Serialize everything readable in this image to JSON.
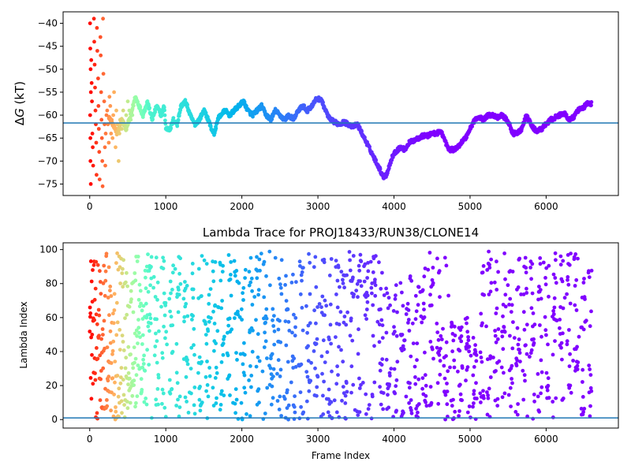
{
  "chart_data": [
    {
      "type": "scatter",
      "title": "",
      "xlabel": "",
      "ylabel": "ΔG (kT)",
      "ylabel_symbol": "Δ",
      "ylabel_var": "G",
      "ylabel_unit": " (kT)",
      "xlim": [
        -350,
        6950
      ],
      "ylim": [
        -77.5,
        -37.5
      ],
      "xticks": [
        0,
        1000,
        2000,
        3000,
        4000,
        5000,
        6000
      ],
      "yticks": [
        -40,
        -45,
        -50,
        -55,
        -60,
        -65,
        -70,
        -75
      ],
      "hline": -61.7,
      "hline_color": "#1f77b4",
      "colormap": "rainbow (frame index; early frames red, late frames violet)",
      "series_trace": [
        [
          0,
          -50
        ],
        [
          60,
          -60
        ],
        [
          120,
          -57
        ],
        [
          180,
          -63
        ],
        [
          240,
          -60
        ],
        [
          300,
          -62
        ],
        [
          360,
          -64
        ],
        [
          420,
          -61
        ],
        [
          480,
          -63
        ],
        [
          540,
          -60
        ],
        [
          600,
          -56
        ],
        [
          650,
          -58
        ],
        [
          700,
          -60
        ],
        [
          760,
          -57
        ],
        [
          820,
          -61
        ],
        [
          880,
          -58
        ],
        [
          940,
          -60
        ],
        [
          980,
          -58
        ],
        [
          1000,
          -63
        ],
        [
          1060,
          -63
        ],
        [
          1100,
          -61
        ],
        [
          1150,
          -62
        ],
        [
          1200,
          -58
        ],
        [
          1260,
          -57
        ],
        [
          1320,
          -60
        ],
        [
          1380,
          -62
        ],
        [
          1440,
          -61
        ],
        [
          1500,
          -59
        ],
        [
          1560,
          -61
        ],
        [
          1600,
          -63
        ],
        [
          1640,
          -64
        ],
        [
          1680,
          -61
        ],
        [
          1720,
          -60
        ],
        [
          1780,
          -59
        ],
        [
          1840,
          -60
        ],
        [
          1900,
          -59
        ],
        [
          1960,
          -58
        ],
        [
          2020,
          -57
        ],
        [
          2080,
          -59
        ],
        [
          2140,
          -60
        ],
        [
          2200,
          -59
        ],
        [
          2260,
          -58
        ],
        [
          2320,
          -60
        ],
        [
          2380,
          -61
        ],
        [
          2440,
          -59
        ],
        [
          2500,
          -60
        ],
        [
          2560,
          -61
        ],
        [
          2620,
          -60
        ],
        [
          2680,
          -61
        ],
        [
          2740,
          -59
        ],
        [
          2800,
          -58
        ],
        [
          2860,
          -59
        ],
        [
          2920,
          -58
        ],
        [
          2980,
          -56.5
        ],
        [
          3040,
          -56.5
        ],
        [
          3100,
          -59
        ],
        [
          3160,
          -61
        ],
        [
          3220,
          -61.5
        ],
        [
          3280,
          -62
        ],
        [
          3340,
          -61.5
        ],
        [
          3400,
          -62
        ],
        [
          3460,
          -62.5
        ],
        [
          3520,
          -62
        ],
        [
          3580,
          -64
        ],
        [
          3640,
          -66
        ],
        [
          3700,
          -68
        ],
        [
          3760,
          -70
        ],
        [
          3820,
          -72
        ],
        [
          3860,
          -73.5
        ],
        [
          3900,
          -73
        ],
        [
          3940,
          -71
        ],
        [
          3980,
          -69
        ],
        [
          4020,
          -68
        ],
        [
          4080,
          -67
        ],
        [
          4140,
          -67.5
        ],
        [
          4200,
          -66
        ],
        [
          4260,
          -65.5
        ],
        [
          4320,
          -65
        ],
        [
          4380,
          -64.5
        ],
        [
          4440,
          -64.5
        ],
        [
          4500,
          -64
        ],
        [
          4560,
          -64
        ],
        [
          4620,
          -63.5
        ],
        [
          4680,
          -66
        ],
        [
          4720,
          -67.5
        ],
        [
          4780,
          -67.5
        ],
        [
          4840,
          -67
        ],
        [
          4880,
          -66
        ],
        [
          4940,
          -65
        ],
        [
          5000,
          -63
        ],
        [
          5060,
          -61
        ],
        [
          5120,
          -60.5
        ],
        [
          5180,
          -61
        ],
        [
          5240,
          -60
        ],
        [
          5300,
          -60
        ],
        [
          5360,
          -60.5
        ],
        [
          5420,
          -60
        ],
        [
          5480,
          -61
        ],
        [
          5520,
          -62
        ],
        [
          5560,
          -64
        ],
        [
          5620,
          -64
        ],
        [
          5680,
          -63
        ],
        [
          5740,
          -60
        ],
        [
          5800,
          -62
        ],
        [
          5840,
          -63
        ],
        [
          5880,
          -63.5
        ],
        [
          5940,
          -63
        ],
        [
          6000,
          -62
        ],
        [
          6060,
          -61
        ],
        [
          6120,
          -60.5
        ],
        [
          6180,
          -60
        ],
        [
          6240,
          -59.5
        ],
        [
          6300,
          -61
        ],
        [
          6360,
          -60.5
        ],
        [
          6420,
          -59
        ],
        [
          6480,
          -58.5
        ],
        [
          6540,
          -57.5
        ],
        [
          6600,
          -57.5
        ]
      ],
      "scatter_points": [
        [
          5,
          -40
        ],
        [
          8,
          -45.5
        ],
        [
          12,
          -50
        ],
        [
          15,
          -55
        ],
        [
          6,
          -60
        ],
        [
          9,
          -65
        ],
        [
          10,
          -70
        ],
        [
          14,
          -75
        ],
        [
          20,
          -48
        ],
        [
          25,
          -53
        ],
        [
          30,
          -57
        ],
        [
          35,
          -64
        ],
        [
          40,
          -67
        ],
        [
          45,
          -71
        ],
        [
          55,
          -39
        ],
        [
          60,
          -44
        ],
        [
          65,
          -49
        ],
        [
          70,
          -54
        ],
        [
          75,
          -59
        ],
        [
          80,
          -62
        ],
        [
          85,
          -66
        ],
        [
          90,
          -73
        ],
        [
          95,
          -41
        ],
        [
          100,
          -46
        ],
        [
          110,
          -52
        ],
        [
          115,
          -58
        ],
        [
          120,
          -63
        ],
        [
          125,
          -68
        ],
        [
          130,
          -74
        ],
        [
          140,
          -43
        ],
        [
          145,
          -47
        ],
        [
          150,
          -55
        ],
        [
          155,
          -61
        ],
        [
          160,
          -65
        ],
        [
          165,
          -70
        ],
        [
          170,
          -75.5
        ],
        [
          175,
          -39
        ],
        [
          180,
          -51
        ],
        [
          190,
          -57
        ],
        [
          195,
          -62
        ],
        [
          200,
          -67
        ],
        [
          205,
          -71
        ],
        [
          210,
          -64
        ],
        [
          220,
          -60
        ],
        [
          230,
          -59
        ],
        [
          240,
          -62
        ],
        [
          250,
          -66
        ],
        [
          260,
          -56
        ],
        [
          270,
          -58
        ],
        [
          280,
          -64
        ],
        [
          290,
          -61
        ],
        [
          300,
          -65
        ],
        [
          310,
          -60
        ],
        [
          320,
          -55
        ],
        [
          330,
          -63
        ],
        [
          340,
          -67
        ],
        [
          350,
          -59
        ],
        [
          360,
          -62
        ],
        [
          380,
          -70
        ],
        [
          390,
          -64
        ],
        [
          400,
          -61
        ],
        [
          420,
          -63
        ],
        [
          440,
          -59
        ],
        [
          460,
          -62
        ],
        [
          480,
          -60
        ],
        [
          500,
          -57
        ],
        [
          520,
          -59
        ],
        [
          540,
          -61
        ],
        [
          560,
          -60
        ]
      ]
    },
    {
      "type": "scatter",
      "title": "Lambda Trace for PROJ18433/RUN38/CLONE14",
      "xlabel": "Frame Index",
      "ylabel": "Lambda Index",
      "xlim": [
        -350,
        6950
      ],
      "ylim": [
        -5,
        104
      ],
      "xticks": [
        0,
        1000,
        2000,
        3000,
        4000,
        5000,
        6000
      ],
      "yticks": [
        0,
        20,
        40,
        60,
        80,
        100
      ],
      "hline": 1,
      "hline_color": "#1f77b4",
      "colormap": "rainbow (frame index; early frames red, late frames violet)",
      "x_max": 6600,
      "y_max": 99
    }
  ]
}
